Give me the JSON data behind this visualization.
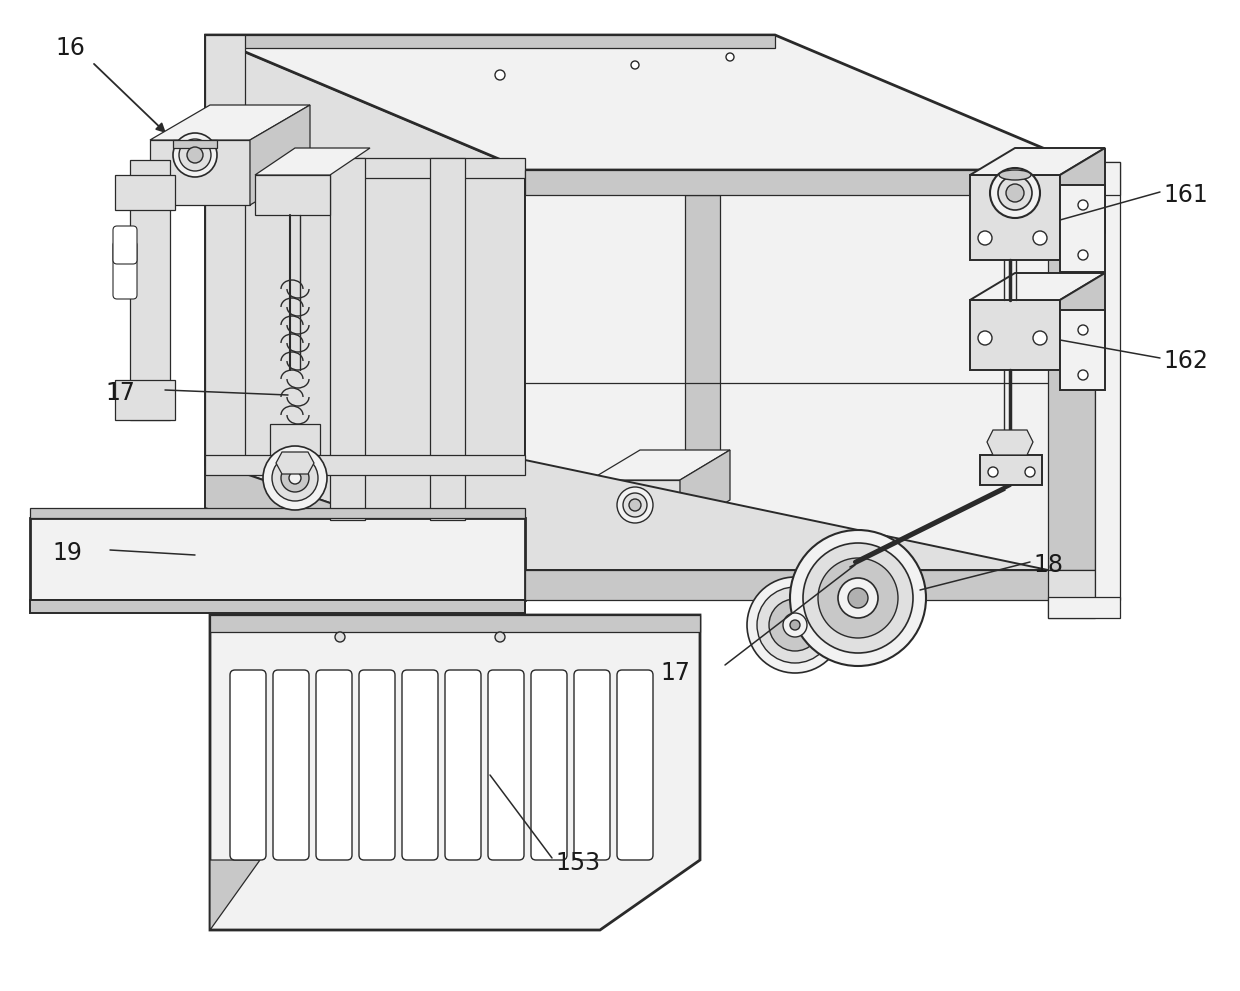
{
  "bg": "#ffffff",
  "lc": "#2a2a2a",
  "fl": "#f2f2f2",
  "fm": "#e0e0e0",
  "fd": "#c8c8c8",
  "fdk": "#b0b0b0",
  "lw_main": 1.4,
  "lw_thick": 2.0,
  "lw_thin": 0.9,
  "label_fontsize": 17,
  "figw": 12.4,
  "figh": 9.91,
  "dpi": 100
}
